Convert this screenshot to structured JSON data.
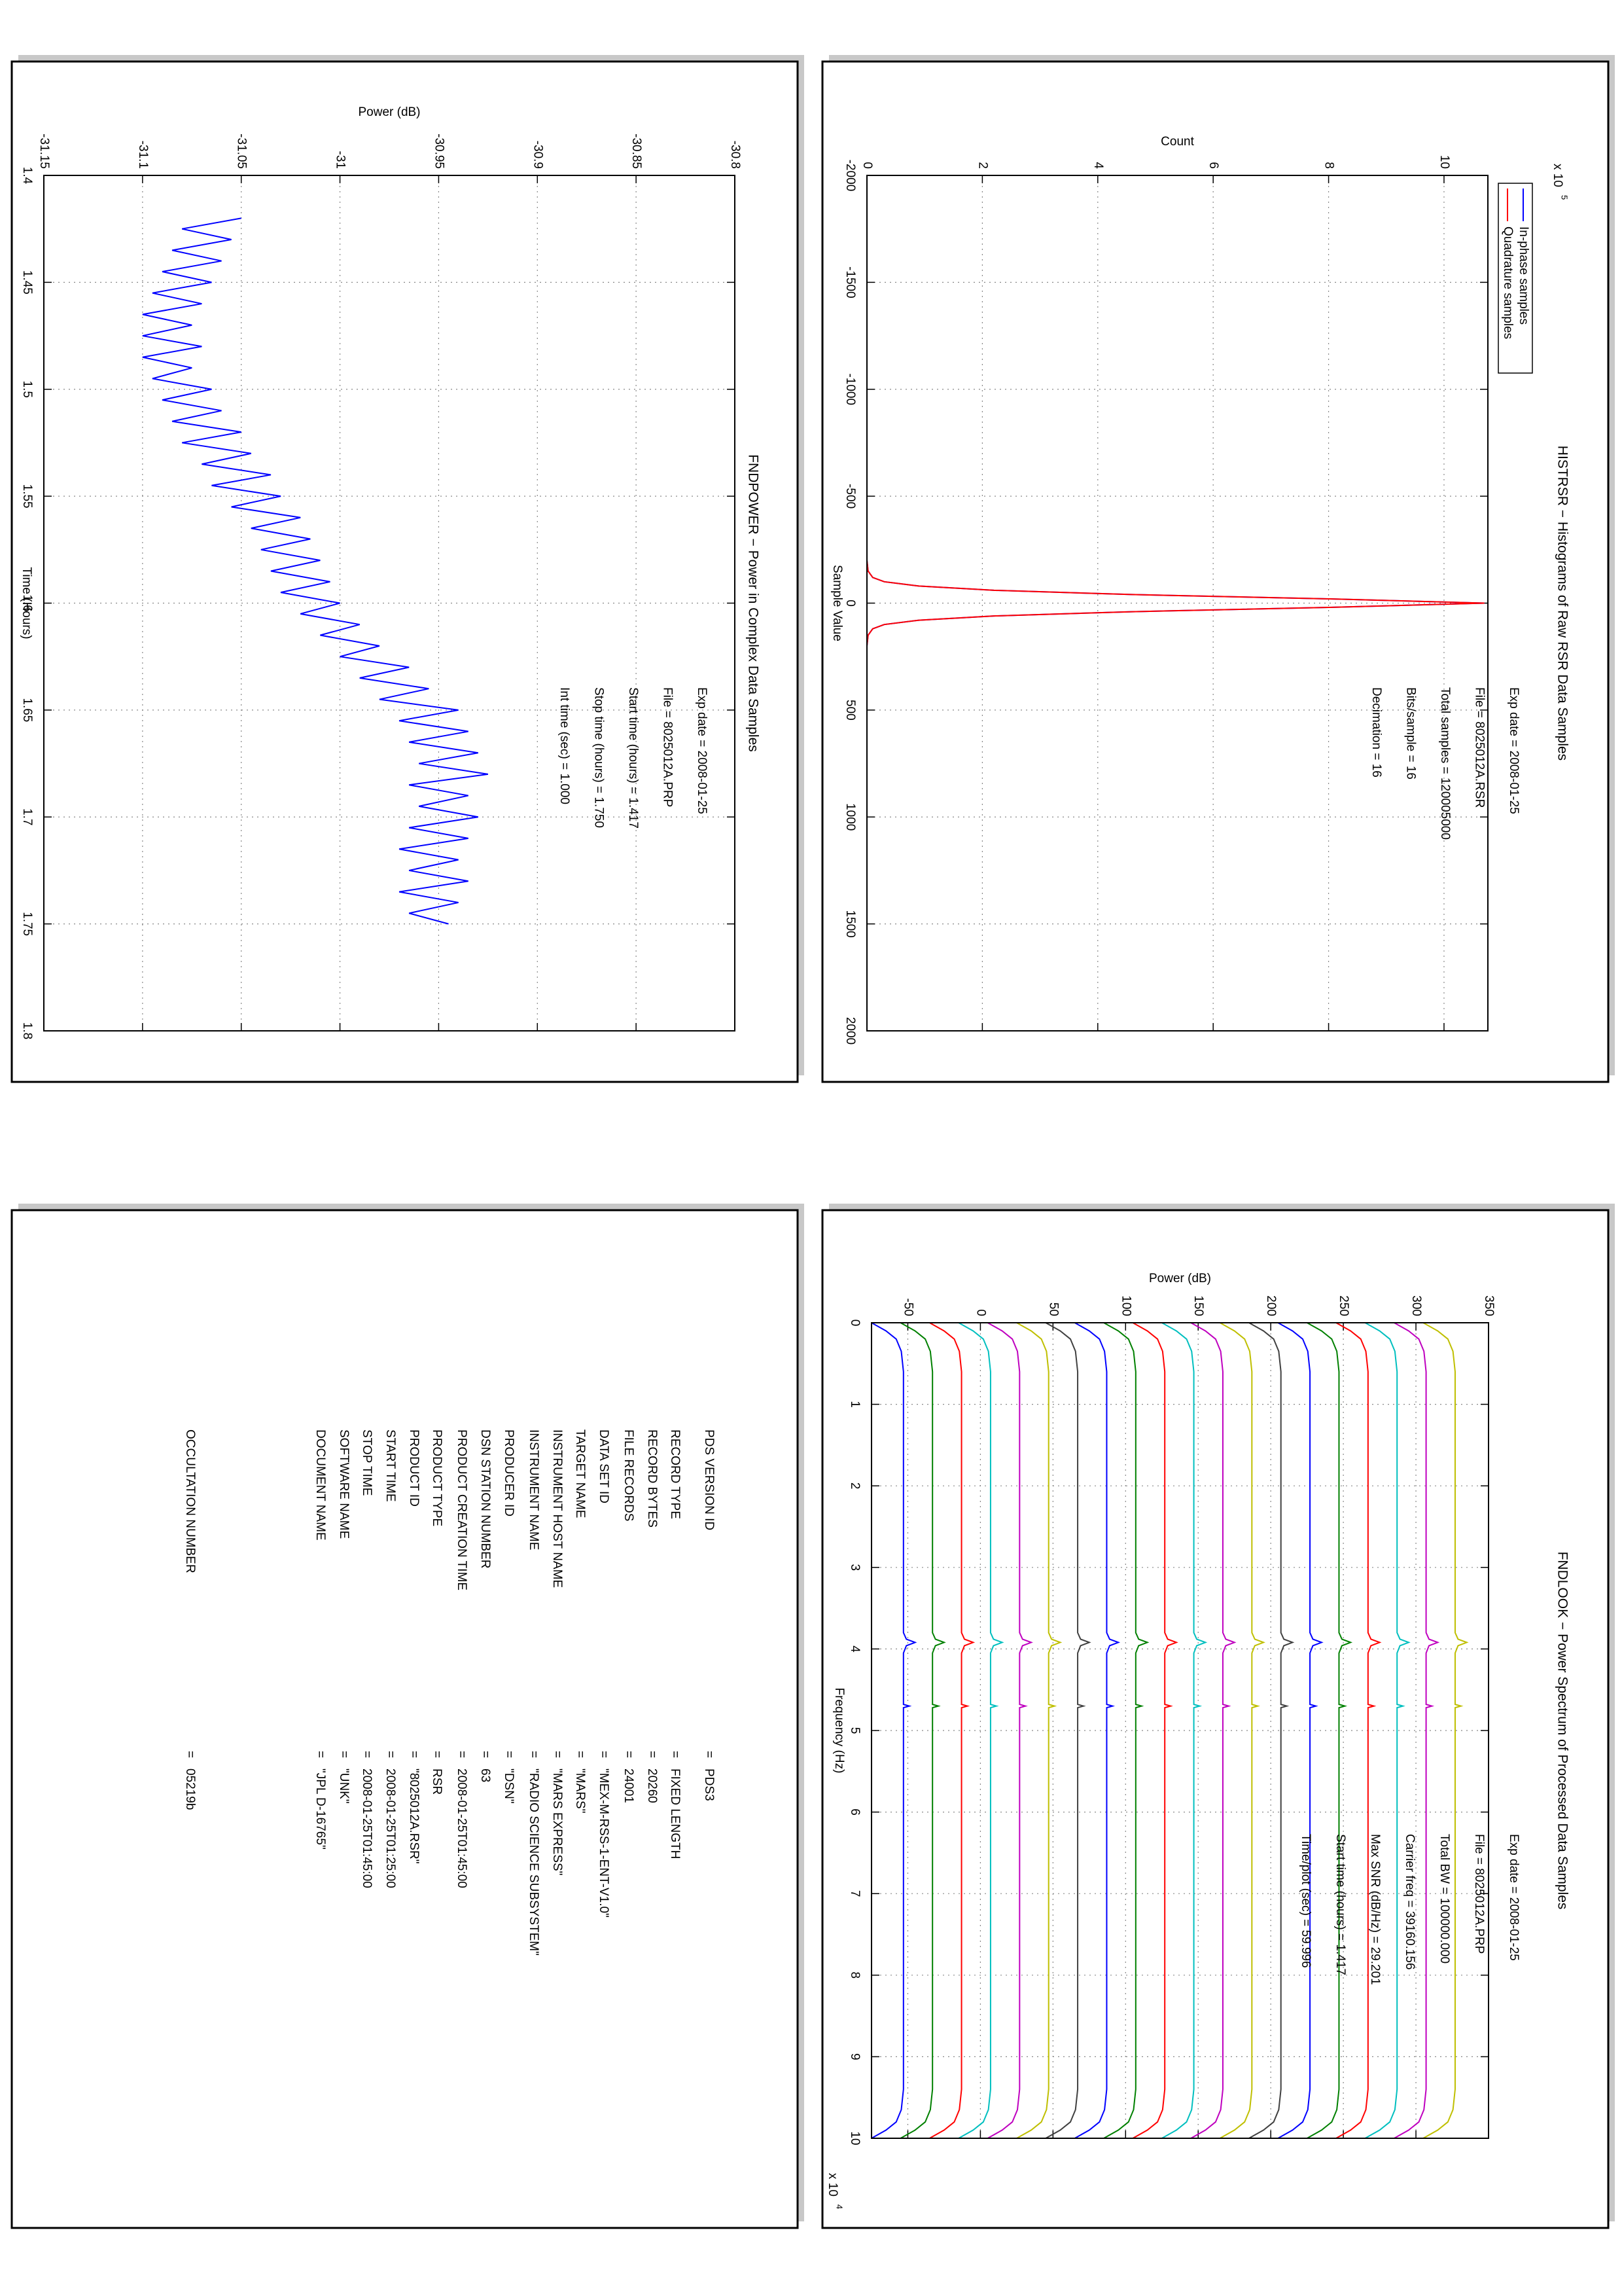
{
  "chart_data": [
    {
      "type": "line",
      "title": "FNDPOWER − Power in Complex Data Samples",
      "xlabel": "Time (Hours)",
      "ylabel": "Power (dB)",
      "xlim": [
        1.4,
        1.8
      ],
      "xticks": [
        1.4,
        1.45,
        1.5,
        1.55,
        1.6,
        1.65,
        1.7,
        1.75,
        1.8
      ],
      "ylim": [
        -31.15,
        -30.8
      ],
      "yticks": [
        -31.15,
        -31.1,
        -31.05,
        -31,
        -30.95,
        -30.9,
        -30.85,
        -30.8
      ],
      "grid": true,
      "annotations": [
        "Exp date = 2008-01-25",
        "File = 8025012A.PRP",
        "Start time (hours) =  1.417",
        "Stop time (hours) =  1.750",
        "Int time (sec) =  1.000"
      ],
      "x": [
        1.42,
        1.425,
        1.43,
        1.435,
        1.44,
        1.445,
        1.45,
        1.455,
        1.46,
        1.465,
        1.47,
        1.475,
        1.48,
        1.485,
        1.49,
        1.495,
        1.5,
        1.505,
        1.51,
        1.515,
        1.52,
        1.525,
        1.53,
        1.535,
        1.54,
        1.545,
        1.55,
        1.555,
        1.56,
        1.565,
        1.57,
        1.575,
        1.58,
        1.585,
        1.59,
        1.595,
        1.6,
        1.605,
        1.61,
        1.615,
        1.62,
        1.625,
        1.63,
        1.635,
        1.64,
        1.645,
        1.65,
        1.655,
        1.66,
        1.665,
        1.67,
        1.675,
        1.68,
        1.685,
        1.69,
        1.695,
        1.7,
        1.705,
        1.71,
        1.715,
        1.72,
        1.725,
        1.73,
        1.735,
        1.74,
        1.745,
        1.75
      ],
      "series": [
        {
          "color": "#0000ff",
          "values": [
            -31.05,
            -31.08,
            -31.055,
            -31.085,
            -31.06,
            -31.09,
            -31.065,
            -31.095,
            -31.07,
            -31.1,
            -31.075,
            -31.1,
            -31.07,
            -31.1,
            -31.075,
            -31.095,
            -31.065,
            -31.09,
            -31.06,
            -31.085,
            -31.05,
            -31.08,
            -31.045,
            -31.07,
            -31.035,
            -31.065,
            -31.03,
            -31.055,
            -31.02,
            -31.045,
            -31.015,
            -31.04,
            -31.01,
            -31.035,
            -31.005,
            -31.03,
            -31.0,
            -31.02,
            -30.99,
            -31.01,
            -30.98,
            -31.0,
            -30.965,
            -30.99,
            -30.955,
            -30.98,
            -30.94,
            -30.97,
            -30.935,
            -30.965,
            -30.93,
            -30.96,
            -30.925,
            -30.965,
            -30.935,
            -30.96,
            -30.93,
            -30.965,
            -30.935,
            -30.97,
            -30.94,
            -30.965,
            -30.935,
            -30.97,
            -30.94,
            -30.965,
            -30.945
          ]
        }
      ]
    },
    {
      "type": "line",
      "title": "HISTRSR − Histograms of Raw RSR Data Samples",
      "xlabel": "Sample Value",
      "ylabel": "Count",
      "y_scale": {
        "base": "x 10",
        "exp": "5"
      },
      "xlim": [
        -2000,
        2000
      ],
      "xticks": [
        -2000,
        -1500,
        -1000,
        -500,
        0,
        500,
        1000,
        1500,
        2000
      ],
      "ylim": [
        0,
        10.76
      ],
      "yticks": [
        0,
        2,
        4,
        6,
        8,
        10
      ],
      "grid": true,
      "legend": "top-left",
      "annotations": [
        "Exp date = 2008-01-25",
        "File = 8025012A.RSR",
        "Total samples =  120005000",
        "Bits/sample  =       16",
        "Decimation   =       16"
      ],
      "x": [
        -2000,
        -200,
        -150,
        -120,
        -100,
        -80,
        -60,
        -40,
        -20,
        0,
        20,
        40,
        60,
        80,
        100,
        120,
        150,
        200,
        2000
      ],
      "series": [
        {
          "name": "In-phase samples",
          "color": "#0000ff",
          "values": [
            0,
            0,
            0.02,
            0.1,
            0.3,
            0.9,
            2.2,
            4.6,
            8.0,
            10.7,
            8.0,
            4.6,
            2.2,
            0.9,
            0.3,
            0.1,
            0.02,
            0,
            0
          ]
        },
        {
          "name": "Quadrature samples",
          "color": "#ff0000",
          "values": [
            0,
            0,
            0.02,
            0.1,
            0.3,
            0.9,
            2.2,
            4.6,
            8.0,
            10.7,
            8.0,
            4.6,
            2.2,
            0.9,
            0.3,
            0.1,
            0.02,
            0,
            0
          ]
        }
      ]
    },
    {
      "type": "line",
      "title": "FNDLOOK − Power Spectrum of Processed Data Samples",
      "xlabel": "Frequency (Hz)",
      "ylabel": "Power (dB)",
      "x_scale": {
        "base": "x 10",
        "exp": "4"
      },
      "xlim": [
        0,
        10
      ],
      "xticks": [
        0,
        1,
        2,
        3,
        4,
        5,
        6,
        7,
        8,
        9,
        10
      ],
      "ylim": [
        -75,
        350
      ],
      "yticks": [
        -50,
        0,
        50,
        100,
        150,
        200,
        250,
        300,
        350
      ],
      "grid": true,
      "annotations": [
        "Exp date = 2008-01-25",
        "File = 8025012A.PRP",
        "Total BW =    100000.000",
        "Carrier freq =    39160.156",
        "Max SNR (dB/Hz) =    29.201",
        "Start time (hours) =    1.417",
        "Time/plot (sec) =    59.996"
      ],
      "x": [
        0,
        0.1,
        0.2,
        0.35,
        0.6,
        3.8,
        3.88,
        3.92,
        3.96,
        4.05,
        4.68,
        4.7,
        4.72,
        9.4,
        9.65,
        9.8,
        9.9,
        10
      ],
      "series": [
        {
          "color": "#0000ff",
          "values": [
            -75,
            -65,
            -58,
            -54.5,
            -53,
            -53,
            -51,
            -45,
            -51,
            -53,
            -53,
            -49,
            -53,
            -53,
            -54.5,
            -58,
            -65,
            -75
          ]
        },
        {
          "color": "#008000",
          "values": [
            -55,
            -45,
            -38,
            -34.5,
            -33,
            -33,
            -31,
            -25,
            -31,
            -33,
            -33,
            -29,
            -33,
            -33,
            -34.5,
            -38,
            -45,
            -55
          ]
        },
        {
          "color": "#ff0000",
          "values": [
            -35,
            -25,
            -18,
            -14.5,
            -13,
            -13,
            -11,
            -5,
            -11,
            -13,
            -13,
            -9,
            -13,
            -13,
            -14.5,
            -18,
            -25,
            -35
          ]
        },
        {
          "color": "#00bfbf",
          "values": [
            -15,
            -5,
            2,
            5.5,
            7,
            7,
            9,
            15,
            9,
            7,
            7,
            11,
            7,
            7,
            5.5,
            2,
            -5,
            -15
          ]
        },
        {
          "color": "#bf00bf",
          "values": [
            5,
            15,
            22,
            25.5,
            27,
            27,
            29,
            35,
            29,
            27,
            27,
            31,
            27,
            27,
            25.5,
            22,
            15,
            5
          ]
        },
        {
          "color": "#bfbf00",
          "values": [
            25,
            35,
            42,
            45.5,
            47,
            47,
            49,
            55,
            49,
            47,
            47,
            51,
            47,
            47,
            45.5,
            42,
            35,
            25
          ]
        },
        {
          "color": "#404040",
          "values": [
            45,
            55,
            62,
            65.5,
            67,
            67,
            69,
            75,
            69,
            67,
            67,
            71,
            67,
            67,
            65.5,
            62,
            55,
            45
          ]
        },
        {
          "color": "#0000ff",
          "values": [
            65,
            75,
            82,
            85.5,
            87,
            87,
            89,
            95,
            89,
            87,
            87,
            91,
            87,
            87,
            85.5,
            82,
            75,
            65
          ]
        },
        {
          "color": "#008000",
          "values": [
            85,
            95,
            102,
            105.5,
            107,
            107,
            109,
            115,
            109,
            107,
            107,
            111,
            107,
            107,
            105.5,
            102,
            95,
            85
          ]
        },
        {
          "color": "#ff0000",
          "values": [
            105,
            115,
            122,
            125.5,
            127,
            127,
            129,
            135,
            129,
            127,
            127,
            131,
            127,
            127,
            125.5,
            122,
            115,
            105
          ]
        },
        {
          "color": "#00bfbf",
          "values": [
            125,
            135,
            142,
            145.5,
            147,
            147,
            149,
            155,
            149,
            147,
            147,
            151,
            147,
            147,
            145.5,
            142,
            135,
            125
          ]
        },
        {
          "color": "#bf00bf",
          "values": [
            145,
            155,
            162,
            165.5,
            167,
            167,
            169,
            175,
            169,
            167,
            167,
            171,
            167,
            167,
            165.5,
            162,
            155,
            145
          ]
        },
        {
          "color": "#bfbf00",
          "values": [
            165,
            175,
            182,
            185.5,
            187,
            187,
            189,
            195,
            189,
            187,
            187,
            191,
            187,
            187,
            185.5,
            182,
            175,
            165
          ]
        },
        {
          "color": "#404040",
          "values": [
            185,
            195,
            202,
            205.5,
            207,
            207,
            209,
            215,
            209,
            207,
            207,
            211,
            207,
            207,
            205.5,
            202,
            195,
            185
          ]
        },
        {
          "color": "#0000ff",
          "values": [
            205,
            215,
            222,
            225.5,
            227,
            227,
            229,
            235,
            229,
            227,
            227,
            231,
            227,
            227,
            225.5,
            222,
            215,
            205
          ]
        },
        {
          "color": "#008000",
          "values": [
            225,
            235,
            242,
            245.5,
            247,
            247,
            249,
            255,
            249,
            247,
            247,
            251,
            247,
            247,
            245.5,
            242,
            235,
            225
          ]
        },
        {
          "color": "#ff0000",
          "values": [
            245,
            255,
            262,
            265.5,
            267,
            267,
            269,
            275,
            269,
            267,
            267,
            271,
            267,
            267,
            265.5,
            262,
            255,
            245
          ]
        },
        {
          "color": "#00bfbf",
          "values": [
            265,
            275,
            282,
            285.5,
            287,
            287,
            289,
            295,
            289,
            287,
            287,
            291,
            287,
            287,
            285.5,
            282,
            275,
            265
          ]
        },
        {
          "color": "#bf00bf",
          "values": [
            285,
            295,
            302,
            305.5,
            307,
            307,
            309,
            315,
            309,
            307,
            307,
            311,
            307,
            307,
            305.5,
            302,
            295,
            285
          ]
        },
        {
          "color": "#bfbf00",
          "values": [
            305,
            315,
            322,
            325.5,
            327,
            327,
            329,
            335,
            329,
            327,
            327,
            331,
            327,
            327,
            325.5,
            322,
            315,
            305
          ]
        }
      ]
    }
  ],
  "table": {
    "rows": [
      [
        "PDS VERSION ID",
        "=",
        "PDS3"
      ],
      [
        "RECORD TYPE",
        "=",
        "FIXED LENGTH"
      ],
      [
        "RECORD BYTES",
        "=",
        "20260"
      ],
      [
        "FILE RECORDS",
        "=",
        "24001"
      ],
      [
        "DATA SET ID",
        "=",
        "\"MEX-M-RSS-1-ENT-V1.0\""
      ],
      [
        "TARGET NAME",
        "=",
        "\"MARS\""
      ],
      [
        "INSTRUMENT HOST NAME",
        "=",
        "\"MARS EXPRESS\""
      ],
      [
        "INSTRUMENT NAME",
        "=",
        "\"RADIO SCIENCE SUBSYSTEM\""
      ],
      [
        "PRODUCER ID",
        "=",
        "\"DSN\""
      ],
      [
        "DSN STATION NUMBER",
        "=",
        "63"
      ],
      [
        "PRODUCT CREATION TIME",
        "=",
        "2008-01-25T01:45:00"
      ],
      [
        "PRODUCT TYPE",
        "=",
        "RSR"
      ],
      [
        "PRODUCT ID",
        "=",
        "\"8025012A.RSR\""
      ],
      [
        "START TIME",
        "=",
        "2008-01-25T01:25:00"
      ],
      [
        "STOP TIME",
        "=",
        "2008-01-25T01:45:00"
      ],
      [
        "SOFTWARE NAME",
        "=",
        "\"UNK\""
      ],
      [
        "DOCUMENT NAME",
        "=",
        "\"JPL D-16765\""
      ],
      [
        "OCCULTATION NUMBER",
        "=",
        "05219b"
      ]
    ]
  }
}
